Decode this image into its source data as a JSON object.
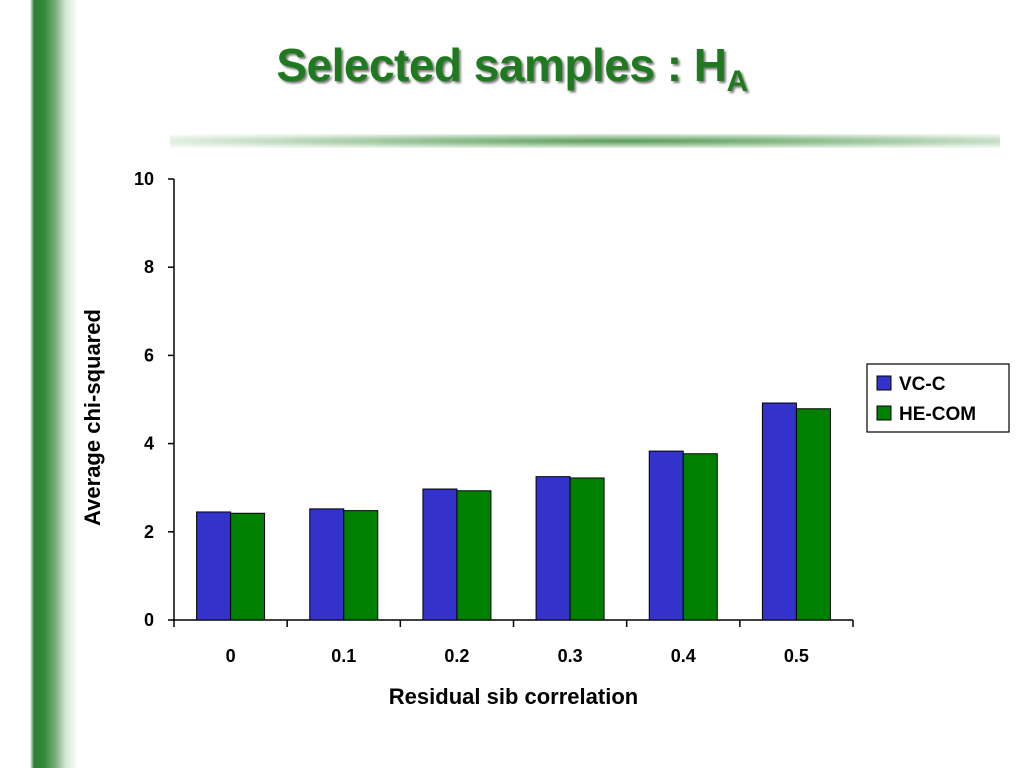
{
  "slide": {
    "title_main": "Selected samples : H",
    "title_sub": "A"
  },
  "chart_data": {
    "type": "bar",
    "categories": [
      "0",
      "0.1",
      "0.2",
      "0.3",
      "0.4",
      "0.5"
    ],
    "series": [
      {
        "name": "VC-C",
        "values": [
          2.45,
          2.52,
          2.97,
          3.25,
          3.83,
          4.92
        ],
        "color": "#3333cc"
      },
      {
        "name": "HE-COM",
        "values": [
          2.42,
          2.48,
          2.93,
          3.22,
          3.77,
          4.79
        ],
        "color": "#008000"
      }
    ],
    "xlabel": "Residual sib correlation",
    "ylabel": "Average chi-squared",
    "ylim": [
      0,
      10
    ],
    "yticks": [
      "0",
      "2",
      "4",
      "6",
      "8",
      "10"
    ],
    "grid": false,
    "legend_position": "right"
  }
}
